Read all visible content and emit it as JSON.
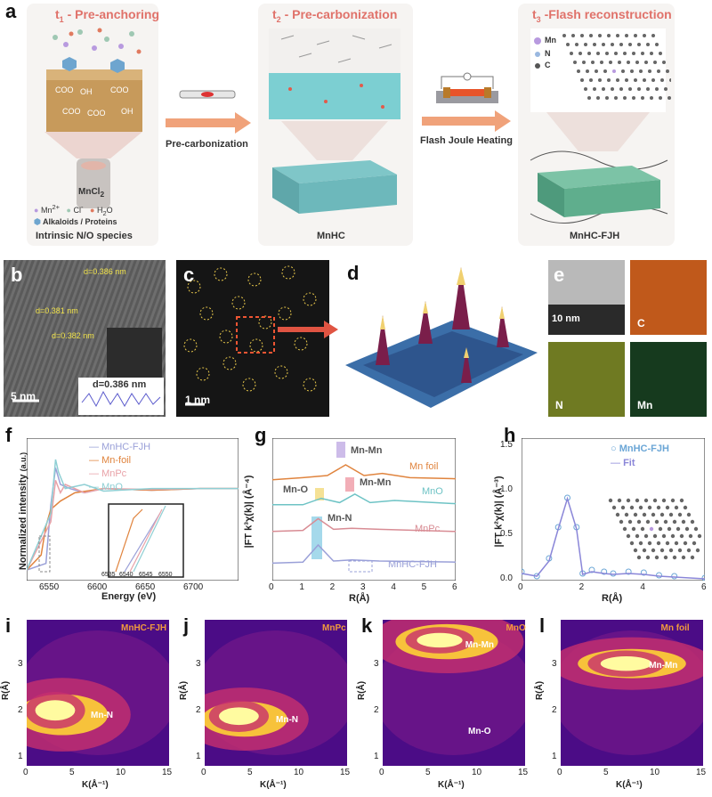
{
  "panel_letters": {
    "a": "a",
    "b": "b",
    "c": "c",
    "d": "d",
    "e": "e",
    "f": "f",
    "g": "g",
    "h": "h",
    "i": "i",
    "j": "j",
    "k": "k",
    "l": "l"
  },
  "panel_a": {
    "step1": {
      "t": "t",
      "sub": "1",
      "title": " - Pre-anchoring"
    },
    "step2": {
      "t": "t",
      "sub": "2",
      "title": " - Pre-carbonization"
    },
    "step3": {
      "t": "t",
      "sub": "3",
      "title": " -Flash reconstruction"
    },
    "arrow1_label": "Pre-carbonization",
    "arrow2_label": "Flash Joule Heating",
    "beaker_label": "MnCl",
    "beaker_sub": "2",
    "legend_mn": "Mn",
    "legend_mn_sup": "2+",
    "legend_cl": "Cl",
    "legend_cl_sup": "-",
    "legend_h2o": "H",
    "legend_h2o_sub": "2",
    "legend_h2o_end": "O",
    "legend_alk": "Alkaloids / Proteins",
    "caption1": "Intrinsic N/O species",
    "caption2": "MnHC",
    "caption3": "MnHC-FJH",
    "atom_mn": "Mn",
    "atom_n": "N",
    "atom_c": "C",
    "groups": [
      "COO",
      "OH",
      "COO",
      "COO",
      "COO",
      "OH"
    ]
  },
  "panel_b": {
    "d1": "d=0.386 nm",
    "d2": "d=0.381 nm",
    "d3": "d=0.382 nm",
    "inset_d": "d=0.386 nm",
    "scale": "5 nm"
  },
  "panel_c": {
    "scale": "1 nm"
  },
  "panel_e": {
    "scale": "10 nm",
    "maps": [
      "C",
      "N",
      "Mn"
    ],
    "colors": {
      "C": "#c0591b",
      "N": "#b9c43a",
      "Mn": "#2f6b3a"
    }
  },
  "panel_f": {
    "ylabel": "Normalized intensity",
    "yunit": "(a.u.)",
    "xlabel": "Energy (eV)",
    "xticks": [
      "6550",
      "6600",
      "6650",
      "6700"
    ],
    "inset_xticks": [
      "6535",
      "6540",
      "6545",
      "6550"
    ],
    "series": [
      {
        "name": "MnHC-FJH",
        "color": "#9aa0d8"
      },
      {
        "name": "Mn-foil",
        "color": "#e0843e"
      },
      {
        "name": "MnPc",
        "color": "#e8a2a8"
      },
      {
        "name": "MnO",
        "color": "#8fcfd4"
      }
    ]
  },
  "panel_g": {
    "ylabel": "|FT k³χ(k)| (Å⁻⁴)",
    "xlabel": "R(Å)",
    "xticks": [
      "0",
      "1",
      "2",
      "3",
      "4",
      "5",
      "6"
    ],
    "series": [
      {
        "name": "Mn foil",
        "color": "#e0843e"
      },
      {
        "name": "MnO",
        "color": "#6ec3c5"
      },
      {
        "name": "MnPc",
        "color": "#d88c94"
      },
      {
        "name": "MnHC-FJH",
        "color": "#9aa0d8"
      }
    ],
    "annotations": [
      "Mn-Mn",
      "Mn-O",
      "Mn-Mn",
      "Mn-N"
    ]
  },
  "panel_h": {
    "ylabel": "|FT k²χ(k)| (Å⁻³)",
    "xlabel": "R(Å)",
    "xticks": [
      "0",
      "2",
      "4",
      "6"
    ],
    "yticks": [
      "0.0",
      "0.5",
      "1.0",
      "1.5"
    ],
    "legend": [
      {
        "name": "MnHC-FJH",
        "color": "#6ba6d6"
      },
      {
        "name": "Fit",
        "color": "#8a86d8"
      }
    ]
  },
  "panels_wt": [
    {
      "letter": "i",
      "title": "MnHC-FJH",
      "bond": "Mn-N"
    },
    {
      "letter": "j",
      "title": "MnPc",
      "bond": "Mn-N"
    },
    {
      "letter": "k",
      "title": "MnO",
      "bond": "Mn-Mn",
      "bond2": "Mn-O"
    },
    {
      "letter": "l",
      "title": "Mn foil",
      "bond": "Mn-Mn"
    }
  ],
  "wt_axes": {
    "ylabel": "R(Å)",
    "xlabel": "K(Å⁻¹)",
    "xticks": [
      "0",
      "5",
      "10",
      "15"
    ],
    "yticks": [
      "1",
      "2",
      "3"
    ]
  },
  "chart_data": [
    {
      "type": "line",
      "title": "",
      "xlabel": "Energy (eV)",
      "ylabel": "Normalized intensity (a.u.)",
      "xlim": [
        6520,
        6740
      ],
      "series": [
        {
          "name": "MnHC-FJH",
          "x": [
            6520,
            6540,
            6545,
            6550,
            6555,
            6565,
            6580,
            6600,
            6650,
            6700,
            6740
          ],
          "values": [
            0.02,
            0.1,
            0.8,
            1.25,
            1.05,
            1.0,
            0.95,
            1.0,
            0.98,
            1.0,
            1.0
          ]
        },
        {
          "name": "Mn-foil",
          "x": [
            6520,
            6535,
            6540,
            6545,
            6555,
            6570,
            6600,
            6650,
            6700,
            6740
          ],
          "values": [
            0.02,
            0.2,
            0.55,
            0.75,
            0.85,
            0.95,
            1.0,
            0.98,
            1.0,
            1.0
          ]
        },
        {
          "name": "MnPc",
          "x": [
            6520,
            6545,
            6550,
            6555,
            6560,
            6580,
            6600,
            6650,
            6700,
            6740
          ],
          "values": [
            0.02,
            0.6,
            1.1,
            0.95,
            1.05,
            0.95,
            1.0,
            0.99,
            1.0,
            1.0
          ]
        },
        {
          "name": "MnO",
          "x": [
            6520,
            6545,
            6550,
            6553,
            6560,
            6580,
            6600,
            6650,
            6700,
            6740
          ],
          "values": [
            0.02,
            0.7,
            1.35,
            1.2,
            1.0,
            1.05,
            0.97,
            1.0,
            1.0,
            1.0
          ]
        }
      ]
    },
    {
      "type": "line",
      "title": "",
      "xlabel": "R(Å)",
      "ylabel": "|FT k³χ(k)| (Å⁻⁴)",
      "xlim": [
        0,
        6
      ],
      "series": [
        {
          "name": "Mn foil",
          "x": [
            0,
            1,
            1.8,
            2.4,
            3,
            3.6,
            4.5,
            6
          ],
          "values": [
            0.3,
            0.4,
            0.5,
            1.0,
            0.5,
            0.6,
            0.4,
            0.35
          ]
        },
        {
          "name": "MnO",
          "x": [
            0,
            1,
            1.6,
            2.2,
            2.7,
            3.2,
            4,
            6
          ],
          "values": [
            0.3,
            0.3,
            0.6,
            0.4,
            0.8,
            0.4,
            0.5,
            0.35
          ]
        },
        {
          "name": "MnPc",
          "x": [
            0,
            1,
            1.5,
            2,
            2.6,
            3.5,
            6
          ],
          "values": [
            0.3,
            0.35,
            0.9,
            0.4,
            0.45,
            0.4,
            0.3
          ]
        },
        {
          "name": "MnHC-FJH",
          "x": [
            0,
            1,
            1.5,
            2,
            2.6,
            3.5,
            6
          ],
          "values": [
            0.15,
            0.2,
            1.0,
            0.25,
            0.3,
            0.25,
            0.2
          ]
        }
      ]
    },
    {
      "type": "line",
      "title": "",
      "xlabel": "R(Å)",
      "ylabel": "|FT k²χ(k)| (Å⁻³)",
      "xlim": [
        0,
        6
      ],
      "ylim": [
        0,
        1.6
      ],
      "series": [
        {
          "name": "MnHC-FJH",
          "x": [
            0,
            0.5,
            0.9,
            1.2,
            1.5,
            1.8,
            2.0,
            2.3,
            2.7,
            3.0,
            3.5,
            4.0,
            4.5,
            5,
            6
          ],
          "values": [
            0.1,
            0.05,
            0.25,
            0.6,
            0.93,
            0.6,
            0.08,
            0.12,
            0.1,
            0.08,
            0.1,
            0.09,
            0.06,
            0.05,
            0.03
          ]
        },
        {
          "name": "Fit",
          "x": [
            0,
            0.5,
            0.9,
            1.2,
            1.5,
            1.8,
            2.0,
            2.3,
            2.7,
            3.0,
            3.5,
            4.0,
            4.5,
            5,
            6
          ],
          "values": [
            0.08,
            0.05,
            0.22,
            0.58,
            0.92,
            0.58,
            0.07,
            0.1,
            0.08,
            0.07,
            0.08,
            0.07,
            0.05,
            0.04,
            0.02
          ]
        }
      ]
    }
  ]
}
